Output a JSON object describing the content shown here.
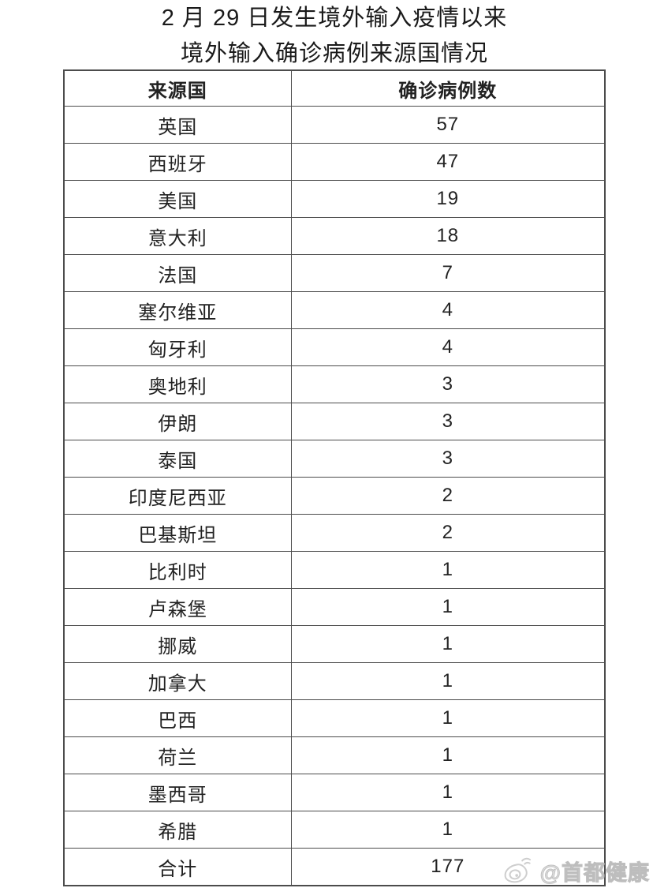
{
  "page": {
    "title_line1": "2 月 29 日发生境外输入疫情以来",
    "title_line2": "境外输入确诊病例来源国情况"
  },
  "table": {
    "headers": [
      "来源国",
      "确诊病例数"
    ],
    "rows": [
      {
        "country": "英国",
        "cases": "57"
      },
      {
        "country": "西班牙",
        "cases": "47"
      },
      {
        "country": "美国",
        "cases": "19"
      },
      {
        "country": "意大利",
        "cases": "18"
      },
      {
        "country": "法国",
        "cases": "7"
      },
      {
        "country": "塞尔维亚",
        "cases": "4"
      },
      {
        "country": "匈牙利",
        "cases": "4"
      },
      {
        "country": "奥地利",
        "cases": "3"
      },
      {
        "country": "伊朗",
        "cases": "3"
      },
      {
        "country": "泰国",
        "cases": "3"
      },
      {
        "country": "印度尼西亚",
        "cases": "2"
      },
      {
        "country": "巴基斯坦",
        "cases": "2"
      },
      {
        "country": "比利时",
        "cases": "1"
      },
      {
        "country": "卢森堡",
        "cases": "1"
      },
      {
        "country": "挪威",
        "cases": "1"
      },
      {
        "country": "加拿大",
        "cases": "1"
      },
      {
        "country": "巴西",
        "cases": "1"
      },
      {
        "country": "荷兰",
        "cases": "1"
      },
      {
        "country": "墨西哥",
        "cases": "1"
      },
      {
        "country": "希腊",
        "cases": "1"
      },
      {
        "country": "合计",
        "cases": "177",
        "is_total": true
      }
    ]
  },
  "watermark": {
    "icon": "weibo-logo-icon",
    "handle": "@首都健康"
  },
  "colors": {
    "text": "#1f1f1f",
    "border": "#4c4c4c",
    "watermark": "#c9c9c9",
    "background": "#ffffff"
  },
  "chart_data": {
    "type": "table",
    "title": "2 月 29 日发生境外输入疫情以来境外输入确诊病例来源国情况",
    "columns": [
      "来源国",
      "确诊病例数"
    ],
    "categories": [
      "英国",
      "西班牙",
      "美国",
      "意大利",
      "法国",
      "塞尔维亚",
      "匈牙利",
      "奥地利",
      "伊朗",
      "泰国",
      "印度尼西亚",
      "巴基斯坦",
      "比利时",
      "卢森堡",
      "挪威",
      "加拿大",
      "巴西",
      "荷兰",
      "墨西哥",
      "希腊"
    ],
    "values": [
      57,
      47,
      19,
      18,
      7,
      4,
      4,
      3,
      3,
      3,
      2,
      2,
      1,
      1,
      1,
      1,
      1,
      1,
      1,
      1
    ],
    "total_label": "合计",
    "total_value": 177,
    "legend_position": "none",
    "grid": true
  }
}
